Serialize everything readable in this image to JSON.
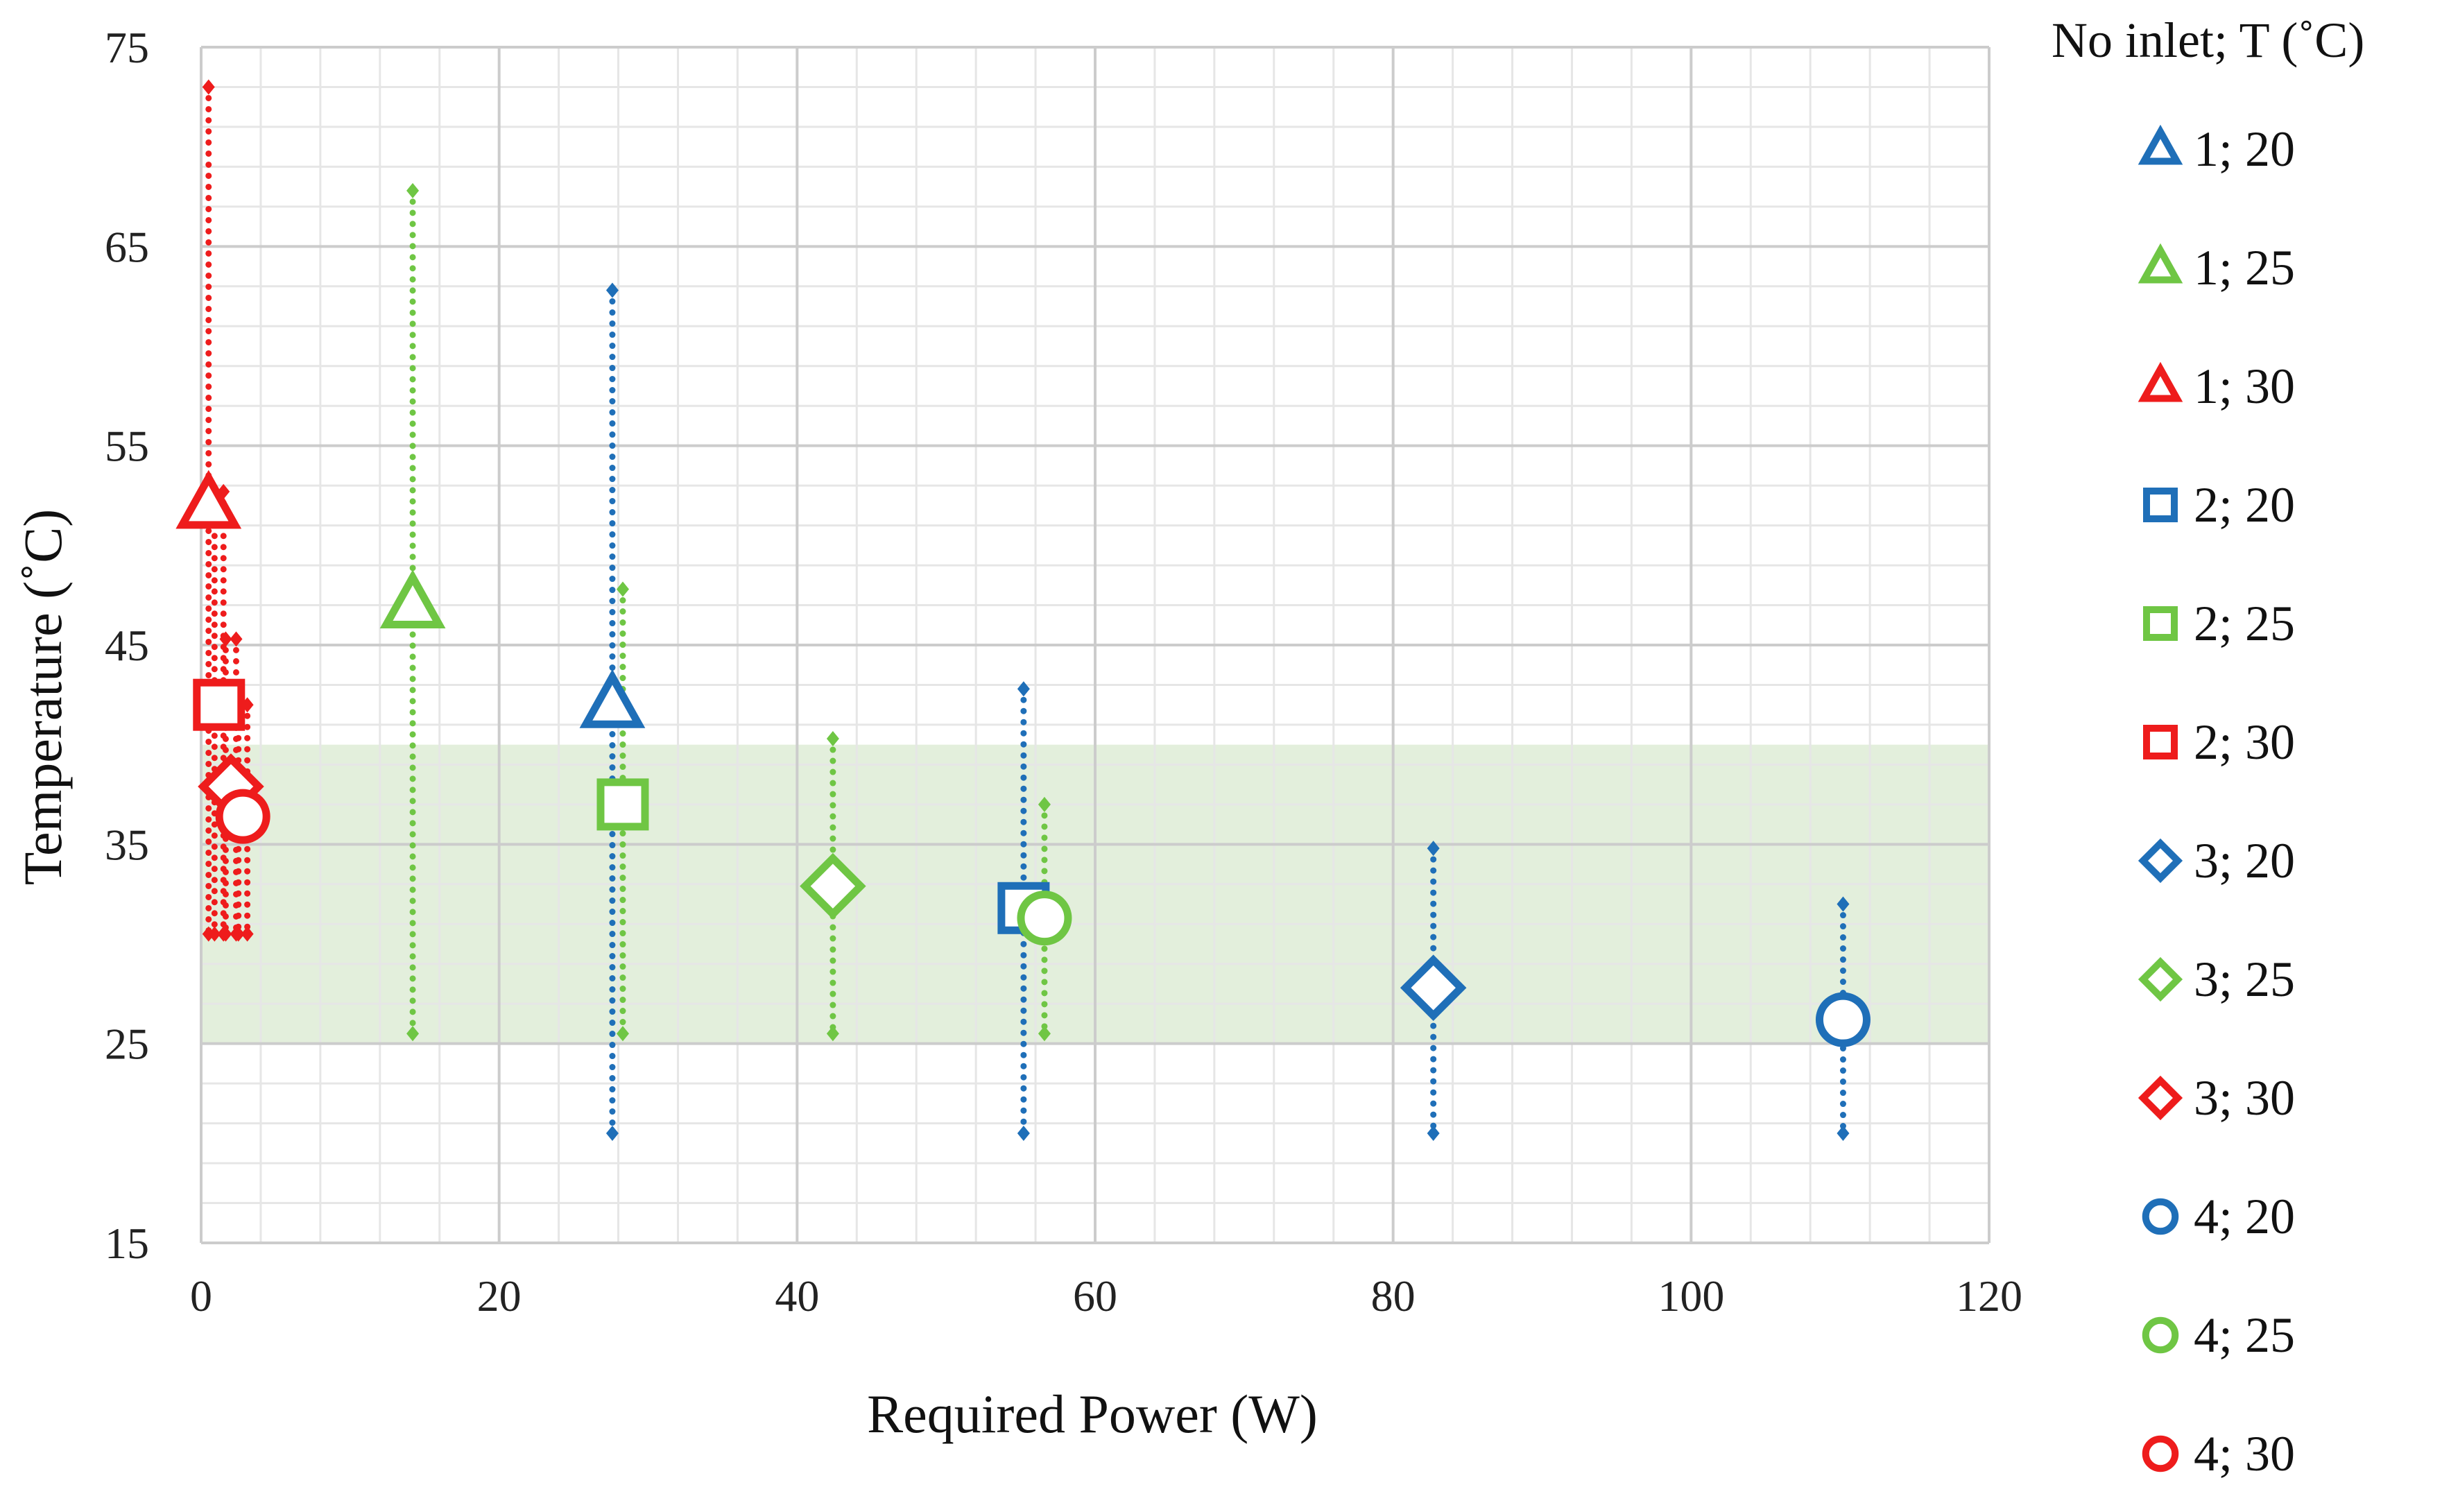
{
  "chart_data": {
    "type": "scatter",
    "xlabel": "Required Power (W)",
    "ylabel": "Temperature (˚C)",
    "xlim": [
      0,
      120
    ],
    "ylim": [
      15,
      75
    ],
    "xticks": [
      0,
      20,
      40,
      60,
      80,
      100,
      120
    ],
    "yticks": [
      15,
      25,
      35,
      45,
      55,
      65,
      75
    ],
    "grid": true,
    "comfort_band": {
      "ymin": 25,
      "ymax": 40,
      "color": "#e3efdc"
    },
    "legend": {
      "title": "No inlet; T (˚C)",
      "position": "right"
    },
    "colors": {
      "20": "#1f6fb8",
      "25": "#6fc644",
      "30": "#ee1c1c",
      "grid_major": "#cccccc",
      "grid_minor": "#e6e6e6"
    },
    "series": [
      {
        "name": "1; 20",
        "inlet": 1,
        "temp": 20,
        "marker": "triangle",
        "color": "#1f6fb8",
        "x": 27.6,
        "y": 42.0,
        "range": {
          "x": 27.6,
          "ymin": 20.5,
          "ymax": 62.8,
          "offsets": [
            0
          ]
        }
      },
      {
        "name": "1; 25",
        "inlet": 1,
        "temp": 25,
        "marker": "triangle",
        "color": "#6fc644",
        "x": 14.2,
        "y": 47.0,
        "range": {
          "x": 14.2,
          "ymin": 25.5,
          "ymax": 67.8,
          "offsets": [
            0
          ]
        }
      },
      {
        "name": "1; 30",
        "inlet": 1,
        "temp": 30,
        "marker": "triangle",
        "color": "#ee1c1c",
        "x": 0.5,
        "y": 52.0,
        "range": {
          "x": 0.5,
          "ymin": 30.5,
          "ymax": 73.0,
          "offsets": [
            0
          ]
        }
      },
      {
        "name": "2; 20",
        "inlet": 2,
        "temp": 20,
        "marker": "square",
        "color": "#1f6fb8",
        "x": 55.2,
        "y": 31.8,
        "range": {
          "x": 55.2,
          "ymin": 20.5,
          "ymax": 42.8,
          "offsets": [
            0
          ]
        }
      },
      {
        "name": "2; 25",
        "inlet": 2,
        "temp": 25,
        "marker": "square",
        "color": "#6fc644",
        "x": 28.3,
        "y": 37.0,
        "range": {
          "x": 28.3,
          "ymin": 25.5,
          "ymax": 47.8,
          "offsets": [
            0
          ]
        }
      },
      {
        "name": "2; 30",
        "inlet": 2,
        "temp": 30,
        "marker": "square",
        "color": "#ee1c1c",
        "x": 1.2,
        "y": 42.0,
        "range": {
          "x": 1.2,
          "ymin": 30.5,
          "ymax": 52.7,
          "offsets": [
            -0.3,
            0.3
          ]
        }
      },
      {
        "name": "3; 20",
        "inlet": 3,
        "temp": 20,
        "marker": "diamond",
        "color": "#1f6fb8",
        "x": 82.7,
        "y": 27.8,
        "range": {
          "x": 82.7,
          "ymin": 20.5,
          "ymax": 34.8,
          "offsets": [
            0
          ]
        }
      },
      {
        "name": "3; 25",
        "inlet": 3,
        "temp": 25,
        "marker": "diamond",
        "color": "#6fc644",
        "x": 42.4,
        "y": 32.9,
        "range": {
          "x": 42.4,
          "ymin": 25.5,
          "ymax": 40.3,
          "offsets": [
            0
          ]
        }
      },
      {
        "name": "3; 30",
        "inlet": 3,
        "temp": 30,
        "marker": "diamond",
        "color": "#ee1c1c",
        "x": 2.0,
        "y": 37.9,
        "range": {
          "x": 2.0,
          "ymin": 30.5,
          "ymax": 45.3,
          "offsets": [
            -0.35,
            0.35
          ]
        }
      },
      {
        "name": "4; 20",
        "inlet": 4,
        "temp": 20,
        "marker": "circle",
        "color": "#1f6fb8",
        "x": 110.2,
        "y": 26.2,
        "range": {
          "x": 110.2,
          "ymin": 20.5,
          "ymax": 32.0,
          "offsets": [
            0
          ]
        }
      },
      {
        "name": "4; 25",
        "inlet": 4,
        "temp": 25,
        "marker": "circle",
        "color": "#6fc644",
        "x": 56.6,
        "y": 31.3,
        "range": {
          "x": 56.6,
          "ymin": 25.5,
          "ymax": 37.0,
          "offsets": [
            0
          ]
        }
      },
      {
        "name": "4; 30",
        "inlet": 4,
        "temp": 30,
        "marker": "circle",
        "color": "#ee1c1c",
        "x": 2.8,
        "y": 36.4,
        "range": {
          "x": 2.8,
          "ymin": 30.5,
          "ymax": 42.0,
          "offsets": [
            -0.3,
            0.3
          ]
        }
      }
    ]
  }
}
